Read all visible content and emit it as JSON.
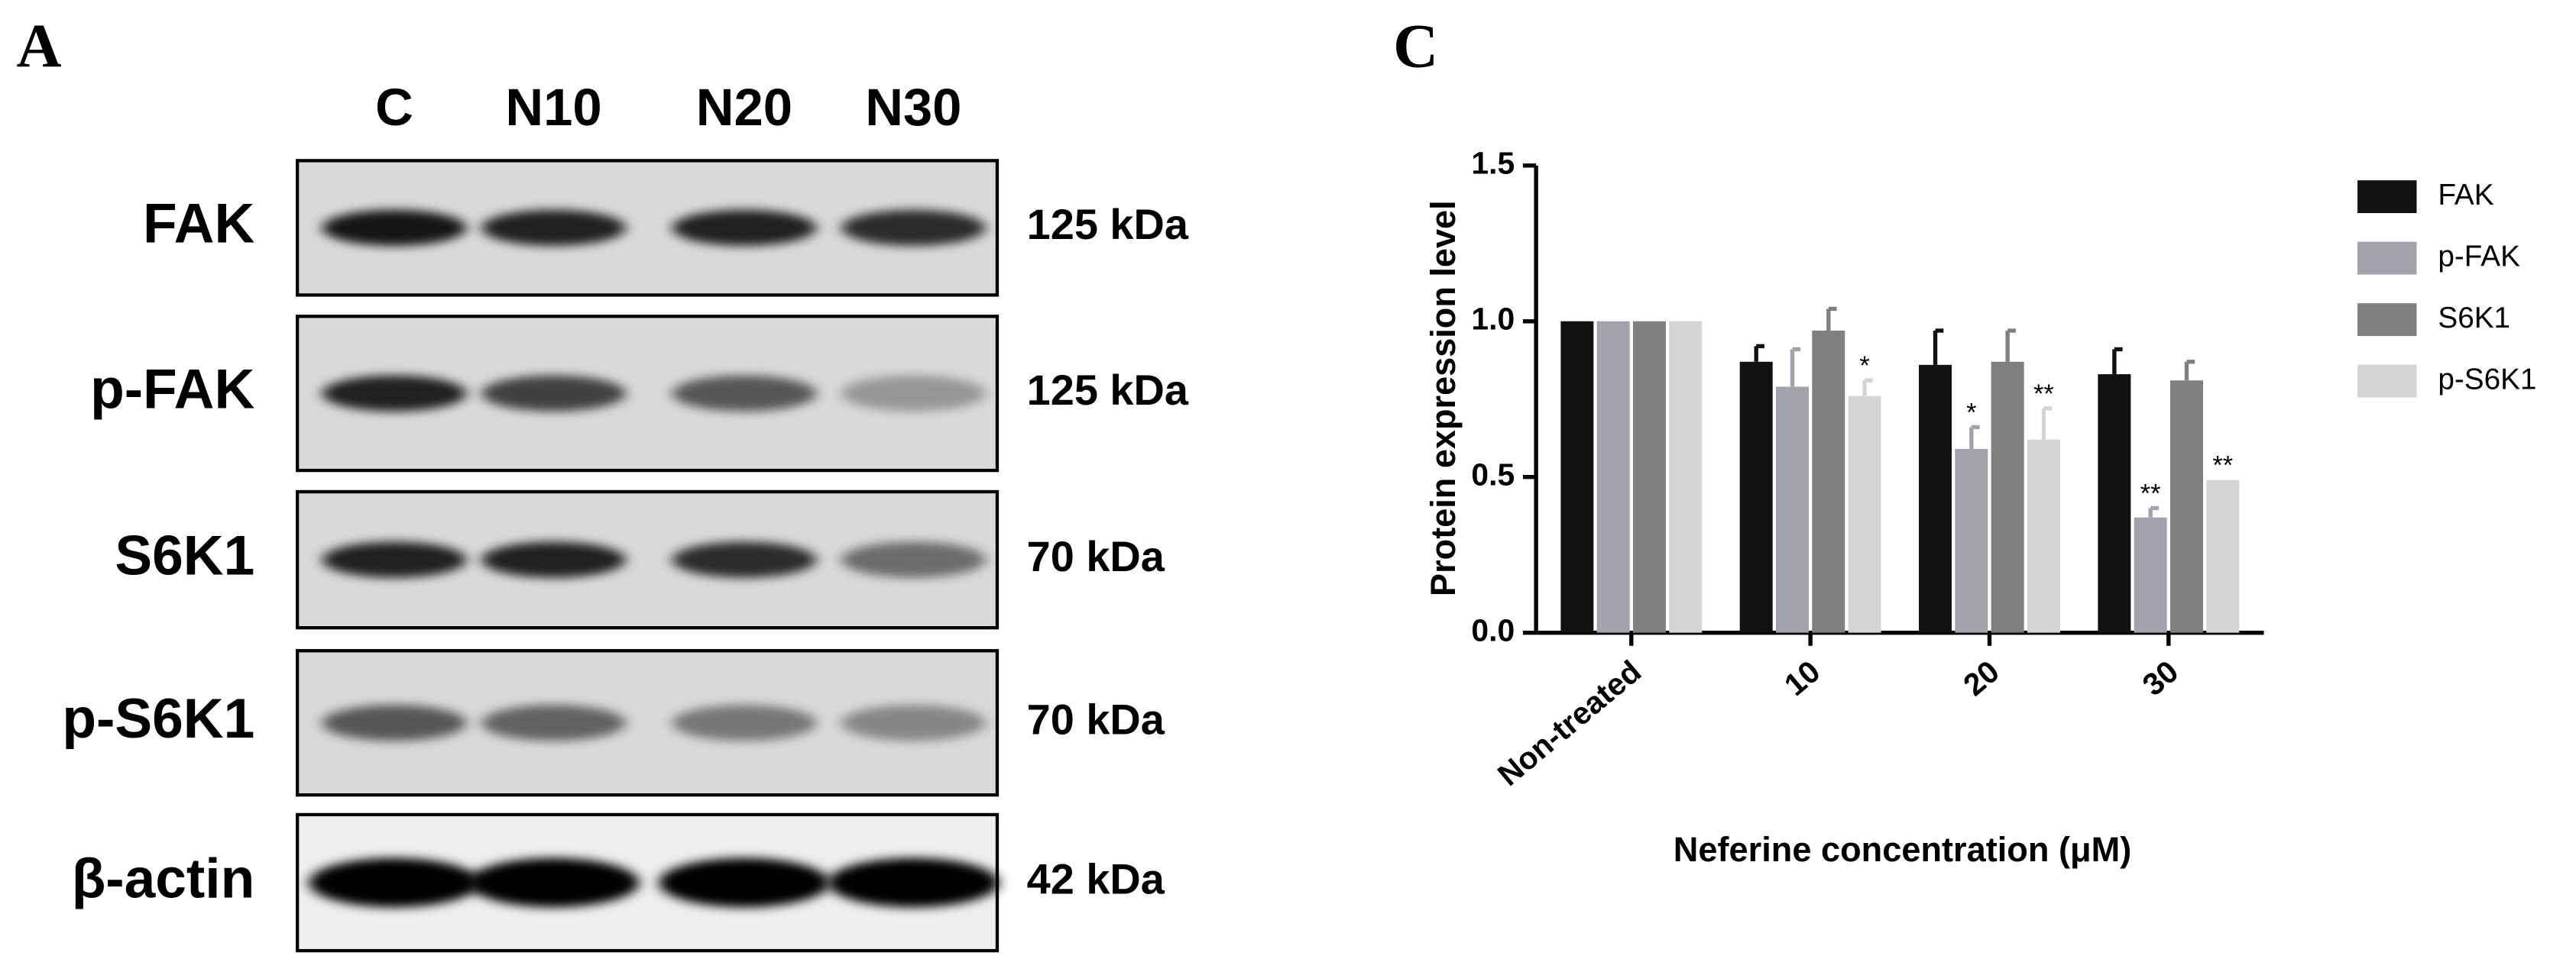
{
  "panel_a": {
    "label": "A",
    "lanes": [
      "C",
      "N10",
      "N20",
      "N30"
    ],
    "rows": [
      {
        "label": "FAK",
        "size": "125 kDa"
      },
      {
        "label": "p-FAK",
        "size": "125 kDa"
      },
      {
        "label": "S6K1",
        "size": "70 kDa"
      },
      {
        "label": "p-S6K1",
        "size": "70 kDa"
      },
      {
        "label": "β-actin",
        "size": "42 kDa"
      }
    ]
  },
  "chart_data": {
    "type": "bar",
    "panel_label": "C",
    "y_label": "Protein expression level",
    "x_label": "Neferine concentration (μM)",
    "categories": [
      "Non-treated",
      "10",
      "20",
      "30"
    ],
    "series": [
      {
        "name": "FAK",
        "color": "#111111",
        "values": [
          1.0,
          0.87,
          0.86,
          0.83
        ],
        "errors": [
          0,
          0.05,
          0.11,
          0.08
        ],
        "significance": [
          null,
          null,
          null,
          null
        ]
      },
      {
        "name": "p-FAK",
        "color": "#a2a2aa",
        "values": [
          1.0,
          0.79,
          0.59,
          0.37
        ],
        "errors": [
          0,
          0.12,
          0.07,
          0.03
        ],
        "significance": [
          null,
          null,
          "*",
          "**"
        ]
      },
      {
        "name": "S6K1",
        "color": "#808080",
        "values": [
          1.0,
          0.97,
          0.87,
          0.81
        ],
        "errors": [
          0,
          0.07,
          0.1,
          0.06
        ],
        "significance": [
          null,
          null,
          null,
          null
        ]
      },
      {
        "name": "p-S6K1",
        "color": "#d4d4d4",
        "values": [
          1.0,
          0.76,
          0.62,
          0.49
        ],
        "errors": [
          0,
          0.05,
          0.1,
          0.0
        ],
        "significance": [
          null,
          "*",
          "**",
          "**"
        ]
      }
    ],
    "ylim": [
      0,
      1.5
    ],
    "yticks": [
      {
        "value": 0,
        "label": "0.0"
      },
      {
        "value": 0.5,
        "label": "0.5"
      },
      {
        "value": 1.0,
        "label": "1.0"
      },
      {
        "value": 1.5,
        "label": "1.5"
      }
    ],
    "grid": false,
    "legend": "right"
  }
}
